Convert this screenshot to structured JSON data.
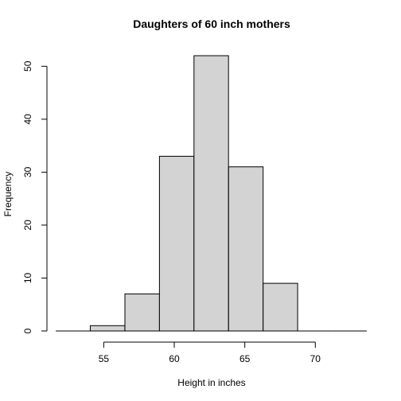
{
  "chart_data": {
    "type": "bar",
    "title": "Daughters of 60 inch mothers",
    "xlabel": "Height in inches",
    "ylabel": "Frequency",
    "bins": [
      {
        "start": 51.6,
        "end": 54.05,
        "count": 0
      },
      {
        "start": 54.05,
        "end": 56.5,
        "count": 1
      },
      {
        "start": 56.5,
        "end": 58.95,
        "count": 7
      },
      {
        "start": 58.95,
        "end": 61.4,
        "count": 33
      },
      {
        "start": 61.4,
        "end": 63.85,
        "count": 52
      },
      {
        "start": 63.85,
        "end": 66.3,
        "count": 31
      },
      {
        "start": 66.3,
        "end": 68.75,
        "count": 9
      },
      {
        "start": 68.75,
        "end": 71.2,
        "count": 0
      },
      {
        "start": 71.2,
        "end": 73.65,
        "count": 0
      }
    ],
    "xlim": [
      51.2,
      74.1
    ],
    "ylim": [
      0,
      52
    ],
    "xticks": [
      55,
      60,
      65,
      70
    ],
    "yticks": [
      0,
      10,
      20,
      30,
      40,
      50
    ],
    "grid": false,
    "bar_fill": "#d3d3d3",
    "bar_stroke": "#000000"
  }
}
